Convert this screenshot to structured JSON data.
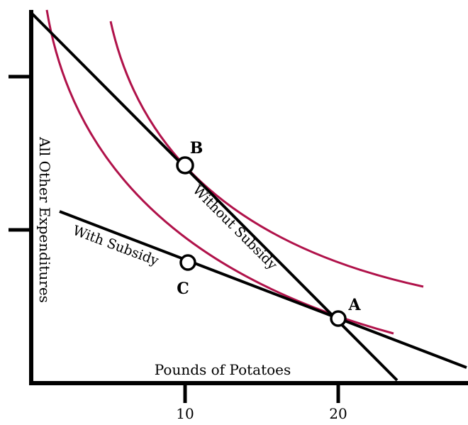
{
  "axes": {
    "x_label": "Pounds of Potatoes",
    "y_label": "All Other Expenditures",
    "x_ticks": [
      "10",
      "20"
    ]
  },
  "lines": {
    "without_subsidy": "Without Subsidy",
    "with_subsidy": "With Subsidy"
  },
  "points": {
    "a": "A",
    "b": "B",
    "c": "C"
  },
  "colors": {
    "budget_line": "#000000",
    "indifference_curve": "#b0124a"
  }
}
